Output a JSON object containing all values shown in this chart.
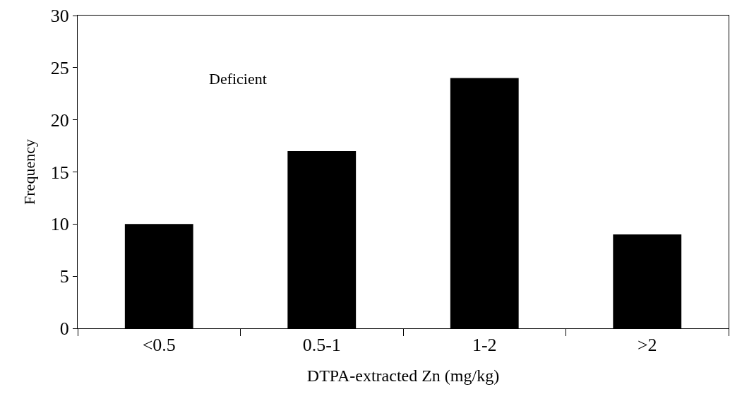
{
  "chart_data": {
    "type": "bar",
    "categories": [
      "<0.5",
      "0.5-1",
      "1-2",
      ">2"
    ],
    "values": [
      10,
      17,
      24,
      9
    ],
    "color": "#000000",
    "xlabel": "DTPA-extracted Zn (mg/kg)",
    "ylabel": "Frequency",
    "ylim": [
      0,
      30
    ],
    "yticks": [
      0,
      5,
      10,
      15,
      20,
      25,
      30
    ],
    "annotations": [
      "Deficient"
    ]
  }
}
